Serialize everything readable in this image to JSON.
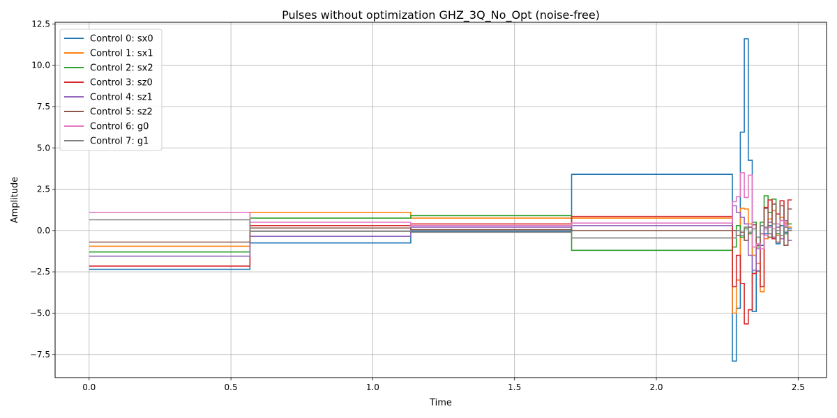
{
  "chart_data": {
    "type": "line",
    "step": "post",
    "title": "Pulses without optimization GHZ_3Q_No_Opt (noise-free)",
    "xlabel": "Time",
    "ylabel": "Amplitude",
    "xlim": [
      -0.12,
      2.6
    ],
    "ylim": [
      -8.9,
      12.6
    ],
    "xticks": [
      0.0,
      0.5,
      1.0,
      1.5,
      2.0,
      2.5
    ],
    "xtick_labels": [
      "0.0",
      "0.5",
      "1.0",
      "1.5",
      "2.0",
      "2.5"
    ],
    "yticks": [
      -7.5,
      -5.0,
      -2.5,
      0.0,
      2.5,
      5.0,
      7.5,
      10.0,
      12.5
    ],
    "ytick_labels": [
      "−7.5",
      "−5.0",
      "−2.5",
      "0.0",
      "2.5",
      "5.0",
      "7.5",
      "10.0",
      "12.5"
    ],
    "grid": true,
    "legend_position": "upper-left",
    "x": [
      0.0,
      0.567,
      1.134,
      1.701,
      2.268,
      2.282,
      2.296,
      2.31,
      2.324,
      2.338,
      2.352,
      2.366,
      2.38,
      2.394,
      2.408,
      2.422,
      2.436,
      2.45,
      2.464
    ],
    "series": [
      {
        "name": "Control 0: sx0",
        "color": "#1f77b4",
        "values": [
          -2.35,
          -0.75,
          -0.05,
          3.4,
          -7.9,
          -4.7,
          5.95,
          11.6,
          4.25,
          -4.9,
          -2.45,
          -0.9,
          -0.2,
          0.3,
          -0.5,
          -0.8,
          0.3,
          -0.1,
          0.1
        ]
      },
      {
        "name": "Control 1: sx1",
        "color": "#ff7f0e",
        "values": [
          -0.95,
          1.1,
          0.75,
          0.75,
          -5.0,
          -3.0,
          1.35,
          1.3,
          0.4,
          -1.5,
          -2.0,
          -3.7,
          -0.5,
          0.7,
          1.2,
          -0.3,
          0.8,
          0.5,
          0.2
        ]
      },
      {
        "name": "Control 2: sx2",
        "color": "#2ca02c",
        "values": [
          -1.3,
          0.75,
          0.9,
          -1.2,
          -1.0,
          0.3,
          -0.4,
          0.1,
          -0.2,
          0.5,
          -1.0,
          0.5,
          2.1,
          1.1,
          1.9,
          -0.2,
          0.6,
          -0.2,
          0.4
        ]
      },
      {
        "name": "Control 3: sz0",
        "color": "#d62728",
        "values": [
          -2.15,
          0.3,
          0.4,
          0.85,
          -3.4,
          -1.5,
          -3.2,
          -5.65,
          -4.8,
          -2.6,
          -0.9,
          -3.4,
          1.4,
          1.85,
          -0.5,
          1.0,
          1.8,
          0.4,
          1.85
        ]
      },
      {
        "name": "Control 4: sz1",
        "color": "#9467bd",
        "values": [
          -1.55,
          -0.35,
          0.2,
          0.3,
          1.5,
          1.1,
          0.8,
          0.4,
          -1.5,
          -2.4,
          -1.1,
          -0.2,
          0.1,
          0.5,
          -0.4,
          0.2,
          -0.5,
          0.6,
          -0.6
        ]
      },
      {
        "name": "Control 5: sz2",
        "color": "#8c564b",
        "values": [
          -0.7,
          0.15,
          0.05,
          0.0,
          0.0,
          -0.3,
          -0.1,
          -0.6,
          0.2,
          0.35,
          -0.9,
          0.3,
          1.35,
          -0.4,
          1.6,
          -0.7,
          1.5,
          -0.9,
          1.3
        ]
      },
      {
        "name": "Control 6: g0",
        "color": "#e377c2",
        "values": [
          1.1,
          0.5,
          0.3,
          0.45,
          1.75,
          2.05,
          3.5,
          2.0,
          3.35,
          -1.0,
          -0.8,
          -1.1,
          -0.3,
          0.2,
          0.1,
          0.4,
          0.6,
          0.3,
          0.0
        ]
      },
      {
        "name": "Control 7: g1",
        "color": "#7f7f7f",
        "values": [
          0.65,
          -0.05,
          -0.1,
          -0.45,
          -0.45,
          0.0,
          -0.3,
          0.2,
          -0.1,
          0.1,
          -0.4,
          0.3,
          0.2,
          -0.2,
          0.4,
          0.0,
          -0.3,
          0.2,
          0.0
        ]
      }
    ]
  }
}
